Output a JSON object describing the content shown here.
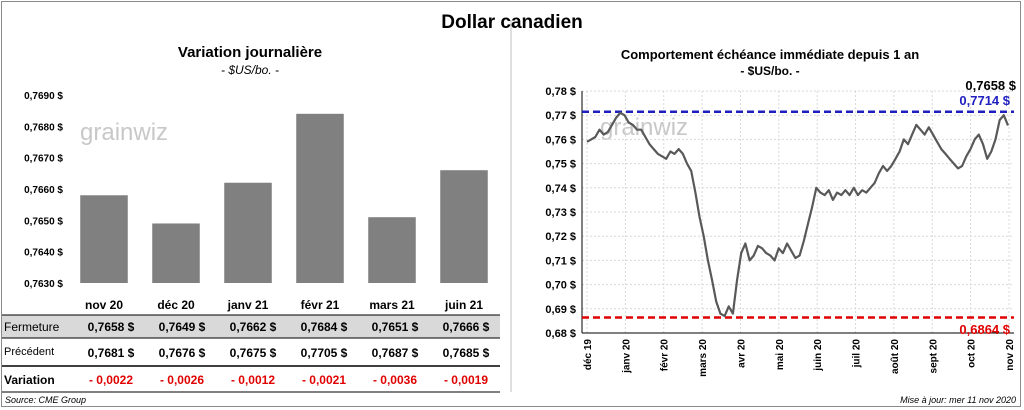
{
  "title": "Dollar canadien",
  "left_panel": {
    "title": "Variation  journalière",
    "subtitle": "- $US/bo. -",
    "watermark": "grainwiz"
  },
  "right_panel": {
    "title": "Comportement échéance immédiate depuis 1 an",
    "subtitle": "- $US/bo. -",
    "watermark": "grainwiz",
    "last_value_label": "0,7658 $",
    "high_label": "0,7714 $",
    "low_label": "0,6864 $",
    "colors": {
      "high_line": "#1f1fbf",
      "low_line": "#e00000",
      "series": "#595959"
    }
  },
  "table": {
    "labels": {
      "close": "Fermeture",
      "previous": "Précédent",
      "change": "Variation"
    },
    "close": [
      "0,7658  $",
      "0,7649  $",
      "0,7662  $",
      "0,7684  $",
      "0,7651  $",
      "0,7666  $"
    ],
    "previous": [
      "0,7681  $",
      "0,7676  $",
      "0,7675  $",
      "0,7705  $",
      "0,7687  $",
      "0,7685  $"
    ],
    "change": [
      "- 0,0022",
      "- 0,0026",
      "- 0,0012",
      "- 0,0021",
      "- 0,0036",
      "- 0,0019"
    ]
  },
  "footer": {
    "source": "Source: CME Group",
    "updated": "Mise à jour: mer 11 nov 2020"
  },
  "chart_data": [
    {
      "type": "bar",
      "categories": [
        "nov 20",
        "déc 20",
        "janv 21",
        "févr 21",
        "mars 21",
        "juin 21"
      ],
      "values": [
        0.7658,
        0.7649,
        0.7662,
        0.7684,
        0.7651,
        0.7666
      ],
      "ylim": [
        0.763,
        0.769
      ],
      "yticks": [
        0.763,
        0.764,
        0.765,
        0.766,
        0.767,
        0.768,
        0.769
      ],
      "ytick_labels": [
        "0,7630 $",
        "0,7640 $",
        "0,7650 $",
        "0,7660 $",
        "0,7670 $",
        "0,7680 $",
        "0,7690 $"
      ],
      "bar_color": "#808080",
      "grid": false
    },
    {
      "type": "line",
      "ylim": [
        0.68,
        0.78
      ],
      "yticks": [
        0.68,
        0.69,
        0.7,
        0.71,
        0.72,
        0.73,
        0.74,
        0.75,
        0.76,
        0.77,
        0.78
      ],
      "ytick_labels": [
        "0,68 $",
        "0,69 $",
        "0,70 $",
        "0,71 $",
        "0,72 $",
        "0,73 $",
        "0,74 $",
        "0,75 $",
        "0,76 $",
        "0,77 $",
        "0,78 $"
      ],
      "xtick_labels": [
        "déc 19",
        "janv 20",
        "févr 20",
        "mars 20",
        "avr 20",
        "mai 20",
        "juin 20",
        "juil 20",
        "août 20",
        "sept 20",
        "oct 20",
        "nov 20"
      ],
      "reference_lines": [
        {
          "value": 0.7714,
          "color": "#1f1fbf"
        },
        {
          "value": 0.6864,
          "color": "#e00000"
        }
      ],
      "grid": true,
      "series": [
        {
          "values": [
            0.759,
            0.76,
            0.761,
            0.764,
            0.762,
            0.763,
            0.766,
            0.769,
            0.771,
            0.77,
            0.767,
            0.766,
            0.764,
            0.764,
            0.761,
            0.758,
            0.756,
            0.754,
            0.753,
            0.752,
            0.755,
            0.754,
            0.756,
            0.754,
            0.75,
            0.747,
            0.738,
            0.728,
            0.72,
            0.71,
            0.702,
            0.693,
            0.688,
            0.687,
            0.691,
            0.688,
            0.702,
            0.713,
            0.717,
            0.71,
            0.712,
            0.716,
            0.715,
            0.713,
            0.712,
            0.71,
            0.715,
            0.713,
            0.717,
            0.714,
            0.711,
            0.712,
            0.718,
            0.725,
            0.732,
            0.74,
            0.738,
            0.737,
            0.739,
            0.735,
            0.738,
            0.737,
            0.739,
            0.737,
            0.74,
            0.737,
            0.739,
            0.738,
            0.74,
            0.742,
            0.746,
            0.749,
            0.747,
            0.749,
            0.752,
            0.755,
            0.76,
            0.758,
            0.762,
            0.766,
            0.764,
            0.762,
            0.765,
            0.762,
            0.759,
            0.756,
            0.754,
            0.752,
            0.75,
            0.748,
            0.749,
            0.753,
            0.756,
            0.76,
            0.762,
            0.758,
            0.752,
            0.755,
            0.76,
            0.768,
            0.77,
            0.7658
          ]
        }
      ]
    }
  ]
}
